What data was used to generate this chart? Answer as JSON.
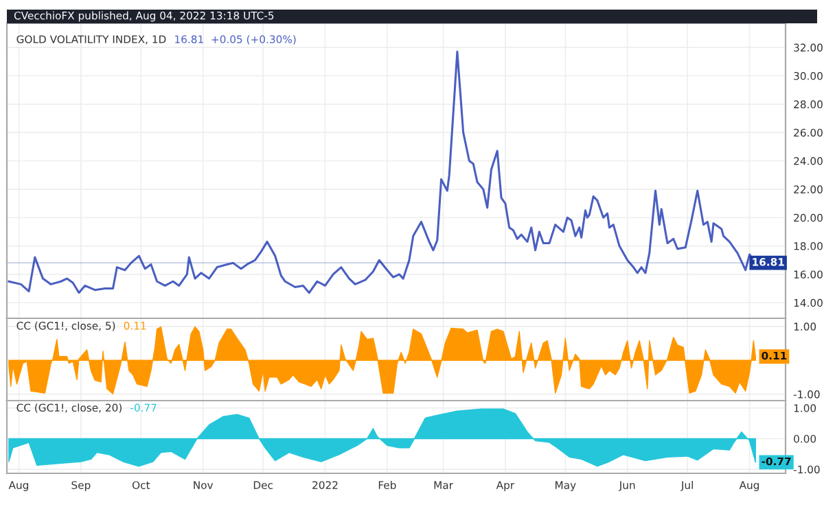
{
  "chart_data": [
    {
      "type": "line",
      "title": "GOLD VOLATILITY INDEX, 1D",
      "annotations": [
        "CVecchioFX published, Aug 04, 2022 13:18 UTC-5",
        "16.81  +0.05 (+0.30%)"
      ],
      "series": [
        {
          "color": "#4a5fc1",
          "x": [
            "2021-07-27",
            "2021-08-02",
            "2021-08-06",
            "2021-08-09",
            "2021-08-13",
            "2021-08-17",
            "2021-08-22",
            "2021-08-25",
            "2021-08-28",
            "2021-08-31",
            "2021-09-03",
            "2021-09-08",
            "2021-09-13",
            "2021-09-17",
            "2021-09-19",
            "2021-09-23",
            "2021-09-26",
            "2021-09-30",
            "2021-10-03",
            "2021-10-06",
            "2021-10-09",
            "2021-10-13",
            "2021-10-17",
            "2021-10-20",
            "2021-10-24",
            "2021-10-25",
            "2021-10-28",
            "2021-10-31",
            "2021-11-04",
            "2021-11-08",
            "2021-11-13",
            "2021-11-16",
            "2021-11-20",
            "2021-11-23",
            "2021-11-27",
            "2021-11-30",
            "2021-12-03",
            "2021-12-07",
            "2021-12-10",
            "2021-12-12",
            "2021-12-17",
            "2021-12-21",
            "2021-12-24",
            "2021-12-28",
            "2022-01-01",
            "2022-01-05",
            "2022-01-09",
            "2022-01-13",
            "2022-01-16",
            "2022-01-21",
            "2022-01-25",
            "2022-01-28",
            "2022-02-01",
            "2022-02-04",
            "2022-02-07",
            "2022-02-09",
            "2022-02-12",
            "2022-02-14",
            "2022-02-18",
            "2022-02-22",
            "2022-02-24",
            "2022-02-26",
            "2022-02-28",
            "2022-03-03",
            "2022-03-04",
            "2022-03-08",
            "2022-03-11",
            "2022-03-14",
            "2022-03-16",
            "2022-03-18",
            "2022-03-21",
            "2022-03-23",
            "2022-03-25",
            "2022-03-28",
            "2022-03-30",
            "2022-04-01",
            "2022-04-03",
            "2022-04-05",
            "2022-04-07",
            "2022-04-09",
            "2022-04-12",
            "2022-04-14",
            "2022-04-16",
            "2022-04-18",
            "2022-04-20",
            "2022-04-23",
            "2022-04-26",
            "2022-04-30",
            "2022-05-02",
            "2022-05-04",
            "2022-05-06",
            "2022-05-08",
            "2022-05-09",
            "2022-05-11",
            "2022-05-12",
            "2022-05-13",
            "2022-05-15",
            "2022-05-17",
            "2022-05-20",
            "2022-05-22",
            "2022-05-23",
            "2022-05-25",
            "2022-05-28",
            "2022-06-01",
            "2022-06-04",
            "2022-06-06",
            "2022-06-08",
            "2022-06-10",
            "2022-06-12",
            "2022-06-15",
            "2022-06-17",
            "2022-06-18",
            "2022-06-21",
            "2022-06-24",
            "2022-06-26",
            "2022-06-30",
            "2022-07-03",
            "2022-07-06",
            "2022-07-09",
            "2022-07-11",
            "2022-07-13",
            "2022-07-14",
            "2022-07-18",
            "2022-07-19",
            "2022-07-22",
            "2022-07-26",
            "2022-07-30",
            "2022-08-01",
            "2022-08-02",
            "2022-08-04"
          ],
          "values": [
            15.5,
            15.3,
            14.8,
            17.2,
            15.7,
            15.3,
            15.5,
            15.7,
            15.4,
            14.7,
            15.2,
            14.9,
            15.0,
            15.0,
            16.5,
            16.3,
            16.8,
            17.3,
            16.4,
            16.7,
            15.5,
            15.2,
            15.5,
            15.2,
            16.0,
            17.2,
            15.7,
            16.1,
            15.7,
            16.5,
            16.7,
            16.8,
            16.4,
            16.7,
            17.0,
            17.6,
            18.3,
            17.3,
            15.9,
            15.5,
            15.1,
            15.2,
            14.7,
            15.5,
            15.2,
            16.0,
            16.5,
            15.7,
            15.3,
            15.6,
            16.2,
            17.0,
            16.3,
            15.8,
            16.0,
            15.7,
            17.0,
            18.7,
            19.7,
            18.3,
            17.7,
            18.4,
            22.7,
            21.9,
            23.0,
            31.7,
            26.0,
            24.0,
            23.8,
            22.5,
            22.0,
            20.7,
            23.4,
            24.7,
            21.4,
            21.0,
            19.3,
            19.1,
            18.5,
            18.8,
            18.3,
            19.3,
            17.7,
            19.0,
            18.2,
            18.2,
            19.5,
            19.0,
            20.0,
            19.8,
            18.7,
            19.3,
            18.6,
            20.5,
            20.0,
            20.2,
            21.5,
            21.2,
            20.0,
            20.3,
            19.3,
            19.5,
            18.0,
            17.0,
            16.5,
            16.1,
            16.5,
            16.1,
            17.5,
            21.9,
            19.5,
            20.6,
            18.2,
            18.5,
            17.8,
            17.9,
            19.8,
            21.9,
            19.5,
            19.7,
            18.3,
            19.6,
            19.2,
            18.7,
            18.3,
            17.5,
            16.3,
            17.4,
            17.2,
            16.81
          ]
        }
      ],
      "xlim": [
        "2021-07-26",
        "2022-08-19"
      ],
      "xticks": [
        {
          "value": "2021-08-01",
          "label": null
        },
        {
          "value": "2021-09-01",
          "label": null
        },
        {
          "value": "2021-10-01",
          "label": null
        },
        {
          "value": "2021-11-01",
          "label": null
        },
        {
          "value": "2021-12-01",
          "label": null
        },
        {
          "value": "2022-01-01",
          "label": null
        },
        {
          "value": "2022-02-01",
          "label": null
        },
        {
          "value": "2022-03-01",
          "label": null
        },
        {
          "value": "2022-04-01",
          "label": null
        },
        {
          "value": "2022-05-01",
          "label": null
        },
        {
          "value": "2022-06-01",
          "label": null
        },
        {
          "value": "2022-07-01",
          "label": null
        },
        {
          "value": "2022-08-01",
          "label": null
        }
      ],
      "ylim": [
        12.9,
        33.7
      ],
      "yticks": [
        {
          "value": 14,
          "label": "14.00"
        },
        {
          "value": 16,
          "label": "16.00"
        },
        {
          "value": 18,
          "label": "18.00"
        },
        {
          "value": 20,
          "label": "20.00"
        },
        {
          "value": 22,
          "label": "22.00"
        },
        {
          "value": 24,
          "label": "24.00"
        },
        {
          "value": 26,
          "label": "26.00"
        },
        {
          "value": 28,
          "label": "28.00"
        },
        {
          "value": 30,
          "label": "30.00"
        },
        {
          "value": 32,
          "label": "32.00"
        }
      ],
      "ref_lines": [
        {
          "axis": "y",
          "value": 16.81,
          "label": "16.81",
          "color": "#1a3a9c"
        }
      ],
      "grid": true,
      "tick_labels": "y"
    },
    {
      "type": "area",
      "title": "CC (GC1!, close, 5)",
      "annotations": [
        "0.11",
        {
          "text": "0.11",
          "x": "2022-08-04",
          "y": 0.11
        }
      ],
      "series": [
        {
          "color": "#ff9800",
          "x": [
            "2021-07-27",
            "2021-07-28",
            "2021-07-29",
            "2021-07-31",
            "2021-08-03",
            "2021-08-05",
            "2021-08-07",
            "2021-08-14",
            "2021-08-17",
            "2021-08-18",
            "2021-08-20",
            "2021-08-21",
            "2021-08-25",
            "2021-08-26",
            "2021-08-28",
            "2021-08-30",
            "2021-08-31",
            "2021-09-04",
            "2021-09-06",
            "2021-09-08",
            "2021-09-11",
            "2021-09-12",
            "2021-09-14",
            "2021-09-17",
            "2021-09-21",
            "2021-09-23",
            "2021-09-25",
            "2021-09-27",
            "2021-09-29",
            "2021-10-04",
            "2021-10-06",
            "2021-10-08",
            "2021-10-09",
            "2021-10-11",
            "2021-10-14",
            "2021-10-16",
            "2021-10-18",
            "2021-10-20",
            "2021-10-22",
            "2021-10-23",
            "2021-10-26",
            "2021-10-28",
            "2021-10-30",
            "2021-11-01",
            "2021-11-02",
            "2021-11-05",
            "2021-11-07",
            "2021-11-09",
            "2021-11-13",
            "2021-11-15",
            "2021-11-18",
            "2021-11-22",
            "2021-11-24",
            "2021-11-26",
            "2021-11-29",
            "2021-12-01",
            "2021-12-02",
            "2021-12-04",
            "2021-12-08",
            "2021-12-10",
            "2021-12-14",
            "2021-12-16",
            "2021-12-19",
            "2021-12-22",
            "2021-12-25",
            "2021-12-28",
            "2021-12-30",
            "2022-01-01",
            "2022-01-03",
            "2022-01-05",
            "2022-01-08",
            "2022-01-09",
            "2022-01-11",
            "2022-01-15",
            "2022-01-16",
            "2022-01-18",
            "2022-01-19",
            "2022-01-22",
            "2022-01-25",
            "2022-01-27",
            "2022-01-30",
            "2022-02-04",
            "2022-02-06",
            "2022-02-08",
            "2022-02-10",
            "2022-02-12",
            "2022-02-14",
            "2022-02-18",
            "2022-02-23",
            "2022-02-26",
            "2022-02-28",
            "2022-03-02",
            "2022-03-05",
            "2022-03-11",
            "2022-03-13",
            "2022-03-18",
            "2022-03-21",
            "2022-03-22",
            "2022-03-25",
            "2022-03-28",
            "2022-03-31",
            "2022-04-04",
            "2022-04-06",
            "2022-04-08",
            "2022-04-10",
            "2022-04-12",
            "2022-04-14",
            "2022-04-16",
            "2022-04-20",
            "2022-04-22",
            "2022-04-24",
            "2022-04-26",
            "2022-04-29",
            "2022-05-01",
            "2022-05-03",
            "2022-05-06",
            "2022-05-08",
            "2022-05-09",
            "2022-05-13",
            "2022-05-15",
            "2022-05-19",
            "2022-05-21",
            "2022-05-23",
            "2022-05-26",
            "2022-05-28",
            "2022-05-30",
            "2022-06-01",
            "2022-06-03",
            "2022-06-05",
            "2022-06-07",
            "2022-06-09",
            "2022-06-11",
            "2022-06-12",
            "2022-06-15",
            "2022-06-18",
            "2022-06-21",
            "2022-06-24",
            "2022-06-26",
            "2022-06-29",
            "2022-06-30",
            "2022-07-02",
            "2022-07-05",
            "2022-07-08",
            "2022-07-10",
            "2022-07-12",
            "2022-07-14",
            "2022-07-18",
            "2022-07-22",
            "2022-07-25",
            "2022-07-27",
            "2022-07-30",
            "2022-08-01",
            "2022-08-02",
            "2022-08-03",
            "2022-08-04"
          ],
          "values": [
            -0.16,
            -0.77,
            -0.16,
            -0.7,
            -0.09,
            -0.03,
            -0.91,
            -0.97,
            -0.09,
            0.04,
            0.62,
            0.11,
            0.11,
            -0.09,
            -0.03,
            -0.57,
            0.04,
            0.31,
            -0.3,
            -0.59,
            -0.64,
            0.27,
            -0.84,
            -0.99,
            -0.09,
            0.54,
            -0.3,
            -0.43,
            -0.7,
            -0.77,
            -0.3,
            0.38,
            0.92,
            0.99,
            0.04,
            -0.09,
            0.31,
            0.47,
            -0.03,
            -0.3,
            0.78,
            0.99,
            0.85,
            0.31,
            -0.3,
            -0.19,
            0.0,
            0.51,
            0.92,
            0.92,
            0.65,
            0.31,
            -0.09,
            -0.7,
            -0.91,
            -0.3,
            -0.91,
            -0.5,
            -0.5,
            -0.7,
            -0.57,
            -0.43,
            -0.64,
            -0.7,
            -0.77,
            -0.57,
            -0.84,
            -0.43,
            -0.7,
            -0.57,
            -0.3,
            0.45,
            0.04,
            -0.3,
            -0.09,
            0.45,
            0.85,
            0.62,
            0.65,
            0.11,
            -0.97,
            -0.97,
            -0.09,
            0.24,
            -0.09,
            0.24,
            0.92,
            0.78,
            0.04,
            -0.5,
            -0.03,
            0.51,
            0.95,
            0.92,
            0.81,
            0.89,
            -0.03,
            -0.09,
            0.85,
            0.92,
            0.85,
            0.04,
            0.11,
            0.85,
            -0.36,
            0.11,
            0.51,
            -0.23,
            0.51,
            0.58,
            0.04,
            -0.97,
            -0.43,
            0.65,
            -0.3,
            0.18,
            0.04,
            -0.77,
            -0.84,
            -0.7,
            -0.16,
            -0.43,
            -0.3,
            -0.43,
            -0.23,
            0.24,
            0.58,
            -0.23,
            0.24,
            0.58,
            0.04,
            -0.84,
            0.58,
            -0.43,
            -0.3,
            0.04,
            0.68,
            0.45,
            0.38,
            -0.09,
            -0.97,
            -0.91,
            -0.43,
            0.31,
            0.04,
            -0.43,
            -0.7,
            -0.77,
            -0.97,
            -0.64,
            -0.91,
            -0.36,
            0.04,
            0.58,
            0.11
          ]
        }
      ],
      "xlim": [
        "2021-07-26",
        "2022-08-19"
      ],
      "xticks": [
        {
          "value": "2021-08-01",
          "label": null
        },
        {
          "value": "2021-09-01",
          "label": null
        },
        {
          "value": "2021-10-01",
          "label": null
        },
        {
          "value": "2021-11-01",
          "label": null
        },
        {
          "value": "2021-12-01",
          "label": null
        },
        {
          "value": "2022-01-01",
          "label": null
        },
        {
          "value": "2022-02-01",
          "label": null
        },
        {
          "value": "2022-03-01",
          "label": null
        },
        {
          "value": "2022-04-01",
          "label": null
        },
        {
          "value": "2022-05-01",
          "label": null
        },
        {
          "value": "2022-06-01",
          "label": null
        },
        {
          "value": "2022-07-01",
          "label": null
        },
        {
          "value": "2022-08-01",
          "label": null
        }
      ],
      "ylim": [
        -1.19,
        1.24
      ],
      "yticks": [
        {
          "value": -1,
          "label": "-1.00"
        },
        {
          "value": 1,
          "label": "1.00"
        }
      ],
      "grid": true,
      "tick_labels": "y"
    },
    {
      "type": "area",
      "title": "CC (GC1!, close, 20)",
      "annotations": [
        "-0.77",
        {
          "text": "-0.77",
          "x": "2022-08-04",
          "y": -0.77
        }
      ],
      "series": [
        {
          "color": "#26c6da",
          "x": [
            "2021-07-27",
            "2021-07-29",
            "2021-08-05",
            "2021-08-06",
            "2021-08-10",
            "2021-08-19",
            "2021-09-01",
            "2021-09-06",
            "2021-09-09",
            "2021-09-15",
            "2021-09-22",
            "2021-09-30",
            "2021-10-07",
            "2021-10-11",
            "2021-10-16",
            "2021-10-23",
            "2021-10-29",
            "2021-11-04",
            "2021-11-11",
            "2021-11-18",
            "2021-11-24",
            "2021-11-29",
            "2021-12-02",
            "2021-12-07",
            "2021-12-14",
            "2021-12-21",
            "2021-12-30",
            "2022-01-08",
            "2022-01-17",
            "2022-01-22",
            "2022-01-25",
            "2022-01-27",
            "2022-02-01",
            "2022-02-07",
            "2022-02-12",
            "2022-02-14",
            "2022-02-20",
            "2022-02-25",
            "2022-03-08",
            "2022-03-20",
            "2022-03-31",
            "2022-04-06",
            "2022-04-12",
            "2022-04-16",
            "2022-04-23",
            "2022-04-27",
            "2022-05-03",
            "2022-05-09",
            "2022-05-17",
            "2022-05-23",
            "2022-05-30",
            "2022-06-10",
            "2022-06-21",
            "2022-07-01",
            "2022-07-06",
            "2022-07-14",
            "2022-07-22",
            "2022-07-24",
            "2022-07-28",
            "2022-08-01",
            "2022-08-04"
          ],
          "values": [
            -0.75,
            -0.3,
            -0.15,
            -0.12,
            -0.87,
            -0.82,
            -0.75,
            -0.67,
            -0.45,
            -0.52,
            -0.75,
            -0.9,
            -0.75,
            -0.45,
            -0.42,
            -0.67,
            0.0,
            0.45,
            0.72,
            0.79,
            0.67,
            0.0,
            -0.3,
            -0.72,
            -0.45,
            -0.6,
            -0.75,
            -0.52,
            -0.22,
            0.0,
            0.33,
            0.07,
            -0.22,
            -0.3,
            -0.3,
            -0.07,
            0.67,
            0.75,
            0.9,
            0.97,
            0.97,
            0.82,
            0.22,
            -0.07,
            -0.12,
            -0.3,
            -0.6,
            -0.67,
            -0.9,
            -0.75,
            -0.52,
            -0.72,
            -0.6,
            -0.57,
            -0.7,
            -0.33,
            -0.37,
            -0.15,
            0.22,
            -0.07,
            -0.77
          ]
        }
      ],
      "xlim": [
        "2021-07-26",
        "2022-08-19"
      ],
      "xticks": [
        {
          "value": "2021-08-01",
          "label": "Aug"
        },
        {
          "value": "2021-09-01",
          "label": "Sep"
        },
        {
          "value": "2021-10-01",
          "label": "Oct"
        },
        {
          "value": "2021-11-01",
          "label": "Nov"
        },
        {
          "value": "2021-12-01",
          "label": "Dec"
        },
        {
          "value": "2022-01-01",
          "label": "2022"
        },
        {
          "value": "2022-02-01",
          "label": "Feb"
        },
        {
          "value": "2022-03-01",
          "label": "Mar"
        },
        {
          "value": "2022-04-01",
          "label": "Apr"
        },
        {
          "value": "2022-05-01",
          "label": "May"
        },
        {
          "value": "2022-06-01",
          "label": "Jun"
        },
        {
          "value": "2022-07-01",
          "label": "Jul"
        },
        {
          "value": "2022-08-01",
          "label": "Aug"
        }
      ],
      "ylim": [
        -1.13,
        1.24
      ],
      "yticks": [
        {
          "value": -1,
          "label": "-1.00"
        },
        {
          "value": 0,
          "label": "0.00"
        },
        {
          "value": 1,
          "label": "1.00"
        }
      ],
      "grid": true
    }
  ]
}
